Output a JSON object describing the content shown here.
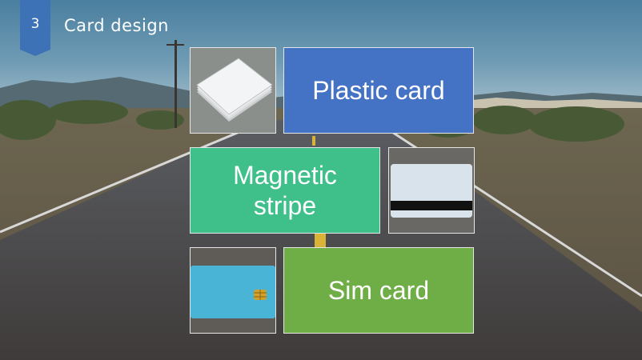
{
  "slide": {
    "number": "3",
    "title": "Card design"
  },
  "tiles": {
    "plastic_card": {
      "label": "Plastic card",
      "color": "#4472c4"
    },
    "magnetic_stripe": {
      "line1": "Magnetic",
      "line2": "stripe",
      "color": "#3fbf8a"
    },
    "sim_card": {
      "label": "Sim card",
      "color": "#6fad47"
    }
  },
  "colors": {
    "badge": "#3d73b6",
    "sim_card_body": "#4ab4d6",
    "chip": "#d2a12b"
  },
  "icons": [
    "plastic-cards-image",
    "magnetic-stripe-card-image",
    "sim-card-image"
  ]
}
